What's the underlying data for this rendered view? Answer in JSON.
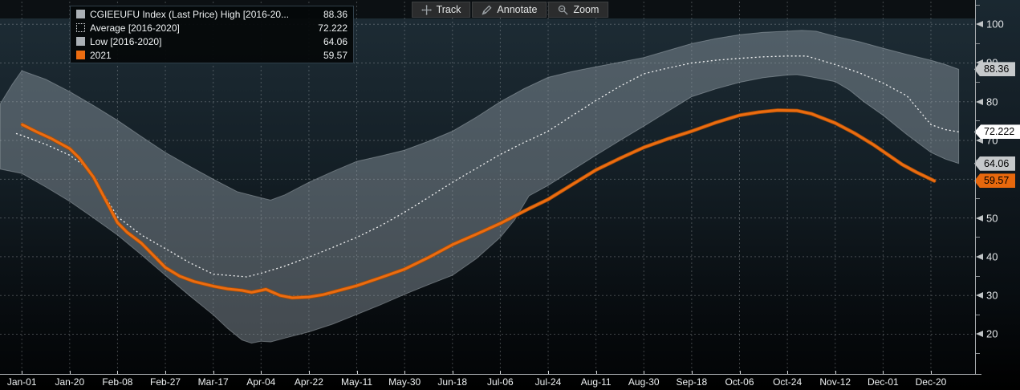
{
  "toolbar": {
    "buttons": [
      {
        "label": "Track",
        "icon": "crosshair-icon"
      },
      {
        "label": "Annotate",
        "icon": "pencil-icon"
      },
      {
        "label": "Zoom",
        "icon": "magnifier-icon"
      }
    ]
  },
  "legend": {
    "rows": [
      {
        "swatch": "gray-solid",
        "label": "CGIEEUFU Index (Last Price) High [2016-20...",
        "value": "88.36"
      },
      {
        "swatch": "white-dotted",
        "label": "Average  [2016-2020]",
        "value": "72.222"
      },
      {
        "swatch": "gray-solid",
        "label": "Low  [2016-2020]",
        "value": "64.06"
      },
      {
        "swatch": "orange-solid",
        "label": "2021",
        "value": "59.57"
      }
    ]
  },
  "colors": {
    "accent_orange": "#ec6c10",
    "band_fill": "rgba(156,166,176,0.42)",
    "band_edge": "rgba(205,214,221,0.35)",
    "average_line": "#ffffff",
    "grid": "#c9ced2",
    "tag_gray_bg": "#c6c9cb",
    "tag_white_bg": "#ffffff",
    "tag_orange_bg": "#e8680d"
  },
  "y_axis": {
    "major_ticks": [
      20,
      30,
      40,
      50,
      60,
      70,
      80,
      90,
      100
    ],
    "minor_ticks": [
      15,
      25,
      35,
      45,
      55,
      65,
      75,
      85,
      95,
      105
    ],
    "value_tags": [
      {
        "text": "88.36",
        "value": 88.36,
        "bg": "tag_gray_bg"
      },
      {
        "text": "72.222",
        "value": 72.222,
        "bg": "tag_white_bg"
      },
      {
        "text": "64.06",
        "value": 64.06,
        "bg": "tag_gray_bg"
      },
      {
        "text": "59.57",
        "value": 59.57,
        "bg": "tag_orange_bg"
      }
    ]
  },
  "chart_data": {
    "type": "line",
    "x_tick_labels": [
      "Jan-01",
      "Jan-20",
      "Feb-08",
      "Feb-27",
      "Mar-17",
      "Apr-04",
      "Apr-22",
      "May-11",
      "May-30",
      "Jun-18",
      "Jul-06",
      "Jul-24",
      "Aug-11",
      "Aug-30",
      "Sep-18",
      "Oct-06",
      "Oct-24",
      "Nov-12",
      "Dec-01",
      "Dec-20"
    ],
    "x_unit": "tick index (19-day spacing), series x values are fractional tick positions",
    "ylim": [
      10,
      105
    ],
    "grid": true,
    "legend_position": "top-left",
    "series": [
      {
        "name": "High [2016-2020]",
        "style": "band-upper",
        "last_value": 88.36,
        "points": [
          [
            -0.45,
            79.5
          ],
          [
            -0.2,
            84.5
          ],
          [
            0,
            88.0
          ],
          [
            0.5,
            85.8
          ],
          [
            1,
            82.6
          ],
          [
            1.5,
            79.0
          ],
          [
            2,
            75.2
          ],
          [
            2.5,
            71.0
          ],
          [
            3,
            66.9
          ],
          [
            3.5,
            63.4
          ],
          [
            4,
            60.0
          ],
          [
            4.5,
            56.8
          ],
          [
            5,
            55.2
          ],
          [
            5.2,
            54.6
          ],
          [
            5.5,
            56.0
          ],
          [
            6,
            59.2
          ],
          [
            6.5,
            62.0
          ],
          [
            7,
            64.6
          ],
          [
            7.5,
            66.0
          ],
          [
            8,
            67.5
          ],
          [
            8.5,
            69.8
          ],
          [
            9,
            72.4
          ],
          [
            9.5,
            76.0
          ],
          [
            10,
            80.0
          ],
          [
            10.5,
            83.4
          ],
          [
            11,
            86.3
          ],
          [
            11.5,
            87.8
          ],
          [
            12,
            89.0
          ],
          [
            12.5,
            90.2
          ],
          [
            13,
            91.4
          ],
          [
            13.5,
            93.2
          ],
          [
            14,
            95.0
          ],
          [
            14.5,
            96.3
          ],
          [
            15,
            97.3
          ],
          [
            15.5,
            97.9
          ],
          [
            16,
            98.2
          ],
          [
            16.3,
            98.4
          ],
          [
            16.6,
            98.2
          ],
          [
            17,
            96.9
          ],
          [
            17.5,
            95.5
          ],
          [
            18,
            93.8
          ],
          [
            18.5,
            92.2
          ],
          [
            19,
            90.7
          ],
          [
            19.3,
            89.6
          ],
          [
            19.58,
            88.36
          ]
        ]
      },
      {
        "name": "Low [2016-2020]",
        "style": "band-lower",
        "last_value": 64.06,
        "points": [
          [
            -0.45,
            62.6
          ],
          [
            0,
            61.5
          ],
          [
            0.5,
            58.0
          ],
          [
            1,
            54.3
          ],
          [
            1.5,
            50.0
          ],
          [
            2,
            45.6
          ],
          [
            2.5,
            40.5
          ],
          [
            3,
            35.2
          ],
          [
            3.5,
            30.0
          ],
          [
            4,
            25.0
          ],
          [
            4.3,
            21.5
          ],
          [
            4.6,
            18.5
          ],
          [
            4.8,
            17.7
          ],
          [
            5,
            18.2
          ],
          [
            5.2,
            18.0
          ],
          [
            5.5,
            19.0
          ],
          [
            6,
            20.6
          ],
          [
            6.5,
            22.6
          ],
          [
            7,
            25.1
          ],
          [
            7.5,
            27.6
          ],
          [
            8,
            30.3
          ],
          [
            8.5,
            32.8
          ],
          [
            9,
            35.2
          ],
          [
            9.5,
            39.5
          ],
          [
            10,
            45.0
          ],
          [
            10.3,
            49.5
          ],
          [
            10.6,
            55.7
          ],
          [
            11,
            58.4
          ],
          [
            11.5,
            62.3
          ],
          [
            12,
            66.2
          ],
          [
            12.5,
            70.0
          ],
          [
            13,
            73.7
          ],
          [
            13.5,
            77.5
          ],
          [
            14,
            81.3
          ],
          [
            14.5,
            83.3
          ],
          [
            15,
            85.0
          ],
          [
            15.5,
            86.2
          ],
          [
            16,
            86.9
          ],
          [
            16.2,
            87.0
          ],
          [
            16.5,
            86.4
          ],
          [
            17,
            85.2
          ],
          [
            17.3,
            83.0
          ],
          [
            17.6,
            80.0
          ],
          [
            18,
            76.5
          ],
          [
            18.5,
            71.5
          ],
          [
            19,
            66.9
          ],
          [
            19.3,
            65.2
          ],
          [
            19.58,
            64.06
          ]
        ]
      },
      {
        "name": "Average [2016-2020]",
        "style": "dotted",
        "last_value": 72.222,
        "points": [
          [
            -0.12,
            71.8
          ],
          [
            0,
            71.3
          ],
          [
            0.5,
            69.0
          ],
          [
            1,
            66.2
          ],
          [
            1.3,
            63.5
          ],
          [
            1.6,
            58.5
          ],
          [
            2,
            50.3
          ],
          [
            2.5,
            45.6
          ],
          [
            3,
            42.1
          ],
          [
            3.5,
            38.5
          ],
          [
            4,
            35.5
          ],
          [
            4.7,
            34.8
          ],
          [
            5.05,
            35.9
          ],
          [
            5.5,
            37.6
          ],
          [
            6,
            39.9
          ],
          [
            6.5,
            42.4
          ],
          [
            7,
            45.0
          ],
          [
            7.5,
            48.0
          ],
          [
            8,
            51.5
          ],
          [
            8.5,
            55.3
          ],
          [
            9,
            59.2
          ],
          [
            9.5,
            62.8
          ],
          [
            10,
            66.4
          ],
          [
            10.5,
            69.5
          ],
          [
            11,
            72.4
          ],
          [
            11.5,
            76.4
          ],
          [
            12,
            80.3
          ],
          [
            12.5,
            84.0
          ],
          [
            13,
            87.2
          ],
          [
            13.5,
            88.7
          ],
          [
            14,
            90.0
          ],
          [
            14.5,
            90.7
          ],
          [
            15,
            91.2
          ],
          [
            15.5,
            91.6
          ],
          [
            16,
            91.8
          ],
          [
            16.4,
            91.8
          ],
          [
            17,
            89.6
          ],
          [
            17.5,
            87.5
          ],
          [
            18,
            84.8
          ],
          [
            18.5,
            81.5
          ],
          [
            19,
            74.1
          ],
          [
            19.3,
            72.8
          ],
          [
            19.58,
            72.222
          ]
        ]
      },
      {
        "name": "2021",
        "style": "solid-orange",
        "last_value": 59.57,
        "points": [
          [
            0.01,
            74.1
          ],
          [
            0.3,
            72.3
          ],
          [
            0.6,
            70.6
          ],
          [
            1,
            67.9
          ],
          [
            1.2,
            65.5
          ],
          [
            1.5,
            60.5
          ],
          [
            1.8,
            53.5
          ],
          [
            2,
            48.8
          ],
          [
            2.2,
            46.3
          ],
          [
            2.5,
            43.5
          ],
          [
            3,
            37.2
          ],
          [
            3.3,
            35.0
          ],
          [
            3.6,
            33.6
          ],
          [
            4,
            32.4
          ],
          [
            4.3,
            31.7
          ],
          [
            4.6,
            31.3
          ],
          [
            4.8,
            30.8
          ],
          [
            5.0,
            31.3
          ],
          [
            5.1,
            31.6
          ],
          [
            5.4,
            30.0
          ],
          [
            5.65,
            29.4
          ],
          [
            6,
            29.6
          ],
          [
            6.3,
            30.2
          ],
          [
            6.6,
            31.2
          ],
          [
            7,
            32.5
          ],
          [
            7.5,
            34.6
          ],
          [
            8,
            36.8
          ],
          [
            8.5,
            39.8
          ],
          [
            9,
            43.1
          ],
          [
            9.5,
            45.8
          ],
          [
            10,
            48.6
          ],
          [
            10.3,
            50.5
          ],
          [
            10.6,
            52.4
          ],
          [
            11,
            54.8
          ],
          [
            11.5,
            58.6
          ],
          [
            12,
            62.4
          ],
          [
            12.5,
            65.4
          ],
          [
            13,
            68.2
          ],
          [
            13.5,
            70.4
          ],
          [
            14,
            72.4
          ],
          [
            14.5,
            74.6
          ],
          [
            15,
            76.5
          ],
          [
            15.4,
            77.3
          ],
          [
            15.8,
            77.8
          ],
          [
            16.2,
            77.7
          ],
          [
            16.5,
            76.9
          ],
          [
            17,
            74.5
          ],
          [
            17.4,
            71.9
          ],
          [
            17.8,
            68.9
          ],
          [
            18,
            67.2
          ],
          [
            18.4,
            63.8
          ],
          [
            18.7,
            61.8
          ],
          [
            19,
            60.0
          ],
          [
            19.07,
            59.57
          ]
        ]
      }
    ]
  }
}
